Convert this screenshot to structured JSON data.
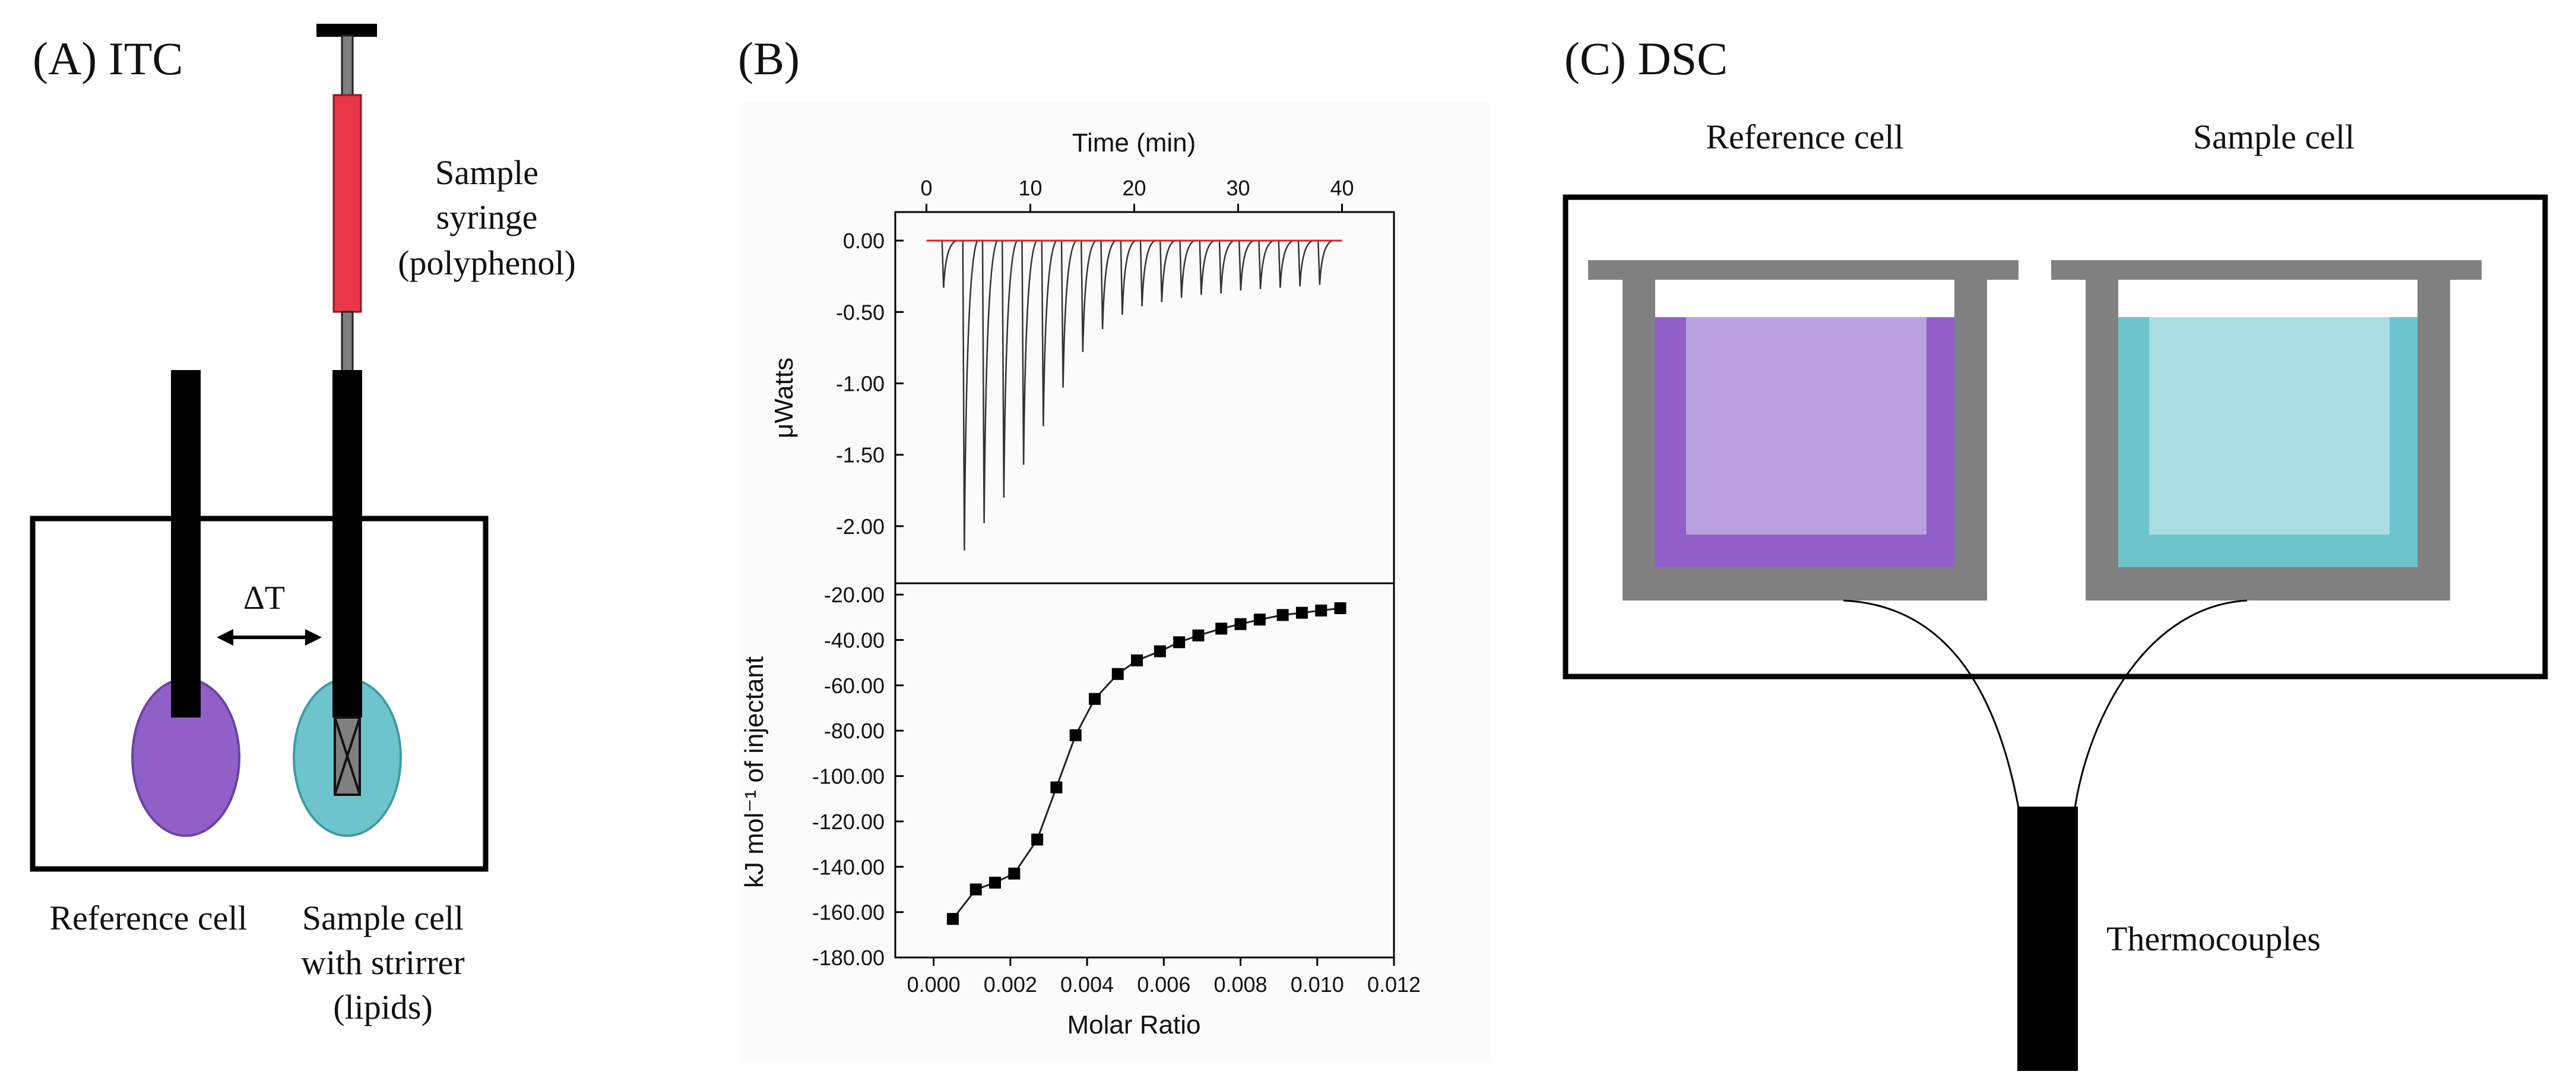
{
  "panel_a": {
    "title": "(A) ITC",
    "syringe_label": [
      "Sample",
      "syringe",
      "(polyphenol)"
    ],
    "delta_t": "ΔT",
    "reference_label": "Reference cell",
    "sample_label": [
      "Sample cell",
      "with strirrer",
      "(lipids)"
    ],
    "colors": {
      "reference": "#9060c8",
      "sample": "#6ec4cc",
      "syringe": "#e8384a"
    }
  },
  "panel_b": {
    "title": "(B)"
  },
  "panel_c": {
    "title": "(C) DSC",
    "reference_label": "Reference cell",
    "sample_label": "Sample cell",
    "thermo_label": "Thermocouples",
    "colors": {
      "reference": "#9060c8",
      "reference_inner": "#b9a1e0",
      "sample": "#6ec4cc",
      "sample_inner": "#a9dde2",
      "frame": "#808080"
    }
  },
  "chart_data": [
    {
      "type": "line",
      "title": "",
      "xlabel": "Time (min)",
      "ylabel": "μWatts",
      "xlim": [
        -3,
        45
      ],
      "ylim": [
        -2.4,
        0.2
      ],
      "xticks": [
        "0",
        "10",
        "20",
        "30",
        "40"
      ],
      "yticks": [
        "0.00",
        "-0.50",
        "-1.00",
        "-1.50",
        "-2.00"
      ],
      "xtick_values": [
        0,
        10,
        20,
        30,
        40
      ],
      "ytick_values": [
        0,
        -0.5,
        -1.0,
        -1.5,
        -2.0
      ],
      "injection_times": [
        1.5,
        3.5,
        5.4,
        7.3,
        9.2,
        11.1,
        13.0,
        14.9,
        16.8,
        18.7,
        20.6,
        22.5,
        24.4,
        26.3,
        28.2,
        30.1,
        32.0,
        33.9,
        35.8,
        37.7
      ],
      "peak_values": [
        -0.33,
        -2.17,
        -1.98,
        -1.8,
        -1.57,
        -1.3,
        -1.03,
        -0.78,
        -0.62,
        -0.52,
        -0.46,
        -0.43,
        -0.4,
        -0.38,
        -0.37,
        -0.35,
        -0.34,
        -0.33,
        -0.32,
        -0.31
      ],
      "baseline": 0.0
    },
    {
      "type": "scatter",
      "title": "",
      "xlabel": "Molar Ratio",
      "ylabel": "kJ mol⁻¹ of injectant",
      "xlim": [
        -0.001,
        0.012
      ],
      "ylim": [
        -180,
        -15
      ],
      "xticks": [
        "0.000",
        "0.002",
        "0.004",
        "0.006",
        "0.008",
        "0.010",
        "0.012"
      ],
      "yticks": [
        "-20.00",
        "-40.00",
        "-60.00",
        "-80.00",
        "-100.00",
        "-120.00",
        "-140.00",
        "-160.00",
        "-180.00"
      ],
      "xtick_values": [
        0,
        0.002,
        0.004,
        0.006,
        0.008,
        0.01,
        0.012
      ],
      "ytick_values": [
        -20,
        -40,
        -60,
        -80,
        -100,
        -120,
        -140,
        -160,
        -180
      ],
      "x": [
        0.0005,
        0.0011,
        0.0016,
        0.0021,
        0.0027,
        0.0032,
        0.0037,
        0.0042,
        0.0048,
        0.0053,
        0.0059,
        0.0064,
        0.0069,
        0.0075,
        0.008,
        0.0085,
        0.0091,
        0.0096,
        0.0101,
        0.0106
      ],
      "y": [
        -163,
        -150,
        -147,
        -143,
        -128,
        -105,
        -82,
        -66,
        -55,
        -49,
        -45,
        -41,
        -38,
        -35,
        -33,
        -31,
        -29,
        -28,
        -27,
        -26
      ]
    }
  ]
}
